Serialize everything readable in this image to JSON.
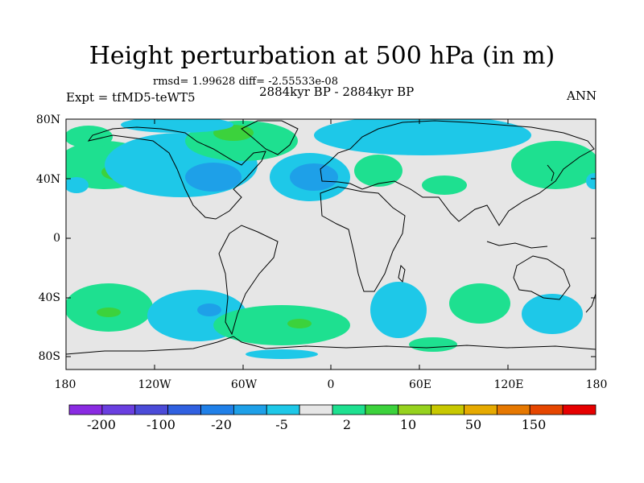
{
  "title": "Height perturbation at 500 hPa (in m)",
  "stats": "rmsd= 1.99628 diff= -2.55533e-08",
  "period": "2884kyr BP - 2884kyr BP",
  "experiment": "Expt = tfMD5-teWT5",
  "season": "ANN",
  "lat_labels": [
    "80N",
    "40N",
    "0",
    "40S",
    "80S"
  ],
  "lon_labels": [
    "180",
    "120W",
    "60W",
    "0",
    "60E",
    "120E",
    "180"
  ],
  "colorbar": {
    "labels": [
      "-200",
      "-100",
      "-20",
      "-5",
      "2",
      "10",
      "50",
      "150"
    ],
    "colors": [
      "#8a2be2",
      "#6a3fe0",
      "#4b4bd8",
      "#3060e0",
      "#2080e8",
      "#1ea0e8",
      "#1ec8e8",
      "#e6e6e6",
      "#1ee090",
      "#3cd23c",
      "#96d21e",
      "#c8c800",
      "#e6aa00",
      "#e67800",
      "#e64600",
      "#e60000"
    ]
  },
  "map_colors": {
    "background": "#e6e6e6",
    "cyan": "#1ec8e8",
    "blue": "#1ea0e8",
    "dark_blue": "#2080e8",
    "teal": "#1ee090",
    "green": "#3cd23c"
  }
}
